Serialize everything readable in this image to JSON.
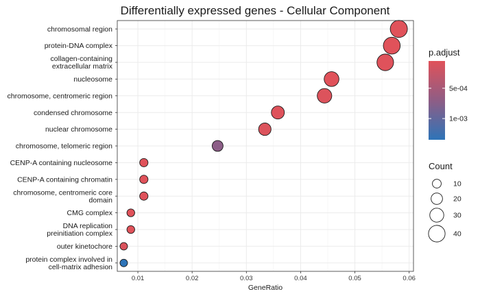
{
  "chart_data": {
    "type": "scatter",
    "title": "Differentially expressed genes - Cellular Component",
    "xlabel": "GeneRatio",
    "ylabel": "",
    "xlim": [
      0.0062,
      0.0608
    ],
    "x_ticks": [
      "0.01",
      "0.02",
      "0.03",
      "0.04",
      "0.05",
      "0.06"
    ],
    "x_tick_values": [
      0.01,
      0.02,
      0.03,
      0.04,
      0.05,
      0.06
    ],
    "grid": true,
    "points": [
      {
        "term": "chromosomal region",
        "gene_ratio": 0.0581,
        "count": 42,
        "p_adjust": 5e-05
      },
      {
        "term": "protein-DNA complex",
        "gene_ratio": 0.0568,
        "count": 41,
        "p_adjust": 5e-05
      },
      {
        "term": "collagen-containing\nextracellular matrix",
        "gene_ratio": 0.0556,
        "count": 40,
        "p_adjust": 6e-05
      },
      {
        "term": "nucleosome",
        "gene_ratio": 0.0457,
        "count": 33,
        "p_adjust": 5e-05
      },
      {
        "term": "chromosome, centromeric region",
        "gene_ratio": 0.0444,
        "count": 32,
        "p_adjust": 8e-05
      },
      {
        "term": "condensed chromosome",
        "gene_ratio": 0.0358,
        "count": 26,
        "p_adjust": 7e-05
      },
      {
        "term": "nuclear chromosome",
        "gene_ratio": 0.0334,
        "count": 24,
        "p_adjust": 8e-05
      },
      {
        "term": "chromosome, telomeric region",
        "gene_ratio": 0.0247,
        "count": 18,
        "p_adjust": 0.00072
      },
      {
        "term": "CENP-A containing nucleosome",
        "gene_ratio": 0.0111,
        "count": 8,
        "p_adjust": 5e-05
      },
      {
        "term": "CENP-A containing chromatin",
        "gene_ratio": 0.0111,
        "count": 8,
        "p_adjust": 5e-05
      },
      {
        "term": "chromosome, centromeric core\ndomain",
        "gene_ratio": 0.0111,
        "count": 8,
        "p_adjust": 6e-05
      },
      {
        "term": "CMG complex",
        "gene_ratio": 0.0087,
        "count": 6,
        "p_adjust": 5e-05
      },
      {
        "term": "DNA replication\npreinitiation complex",
        "gene_ratio": 0.0087,
        "count": 6,
        "p_adjust": 5e-05
      },
      {
        "term": "outer kinetochore",
        "gene_ratio": 0.0074,
        "count": 5,
        "p_adjust": 0.0001
      },
      {
        "term": "protein complex involved in\ncell-matrix adhesion",
        "gene_ratio": 0.0074,
        "count": 5,
        "p_adjust": 0.00135
      }
    ],
    "color_legend": {
      "title": "p.adjust",
      "ticks": [
        {
          "label": "5e-04",
          "value": 0.0005
        },
        {
          "label": "1e-03",
          "value": 0.001
        }
      ],
      "range": [
        5e-05,
        0.00135
      ],
      "low_color": "#e0525a",
      "high_color": "#2e74b8"
    },
    "size_legend": {
      "title": "Count",
      "values": [
        10,
        20,
        30,
        40
      ],
      "labels": [
        "10",
        "20",
        "30",
        "40"
      ]
    },
    "legend_position": "right",
    "point_stroke": "#1a1a1a",
    "grid_color": "#ebebeb",
    "panel_border_color": "#333333"
  }
}
